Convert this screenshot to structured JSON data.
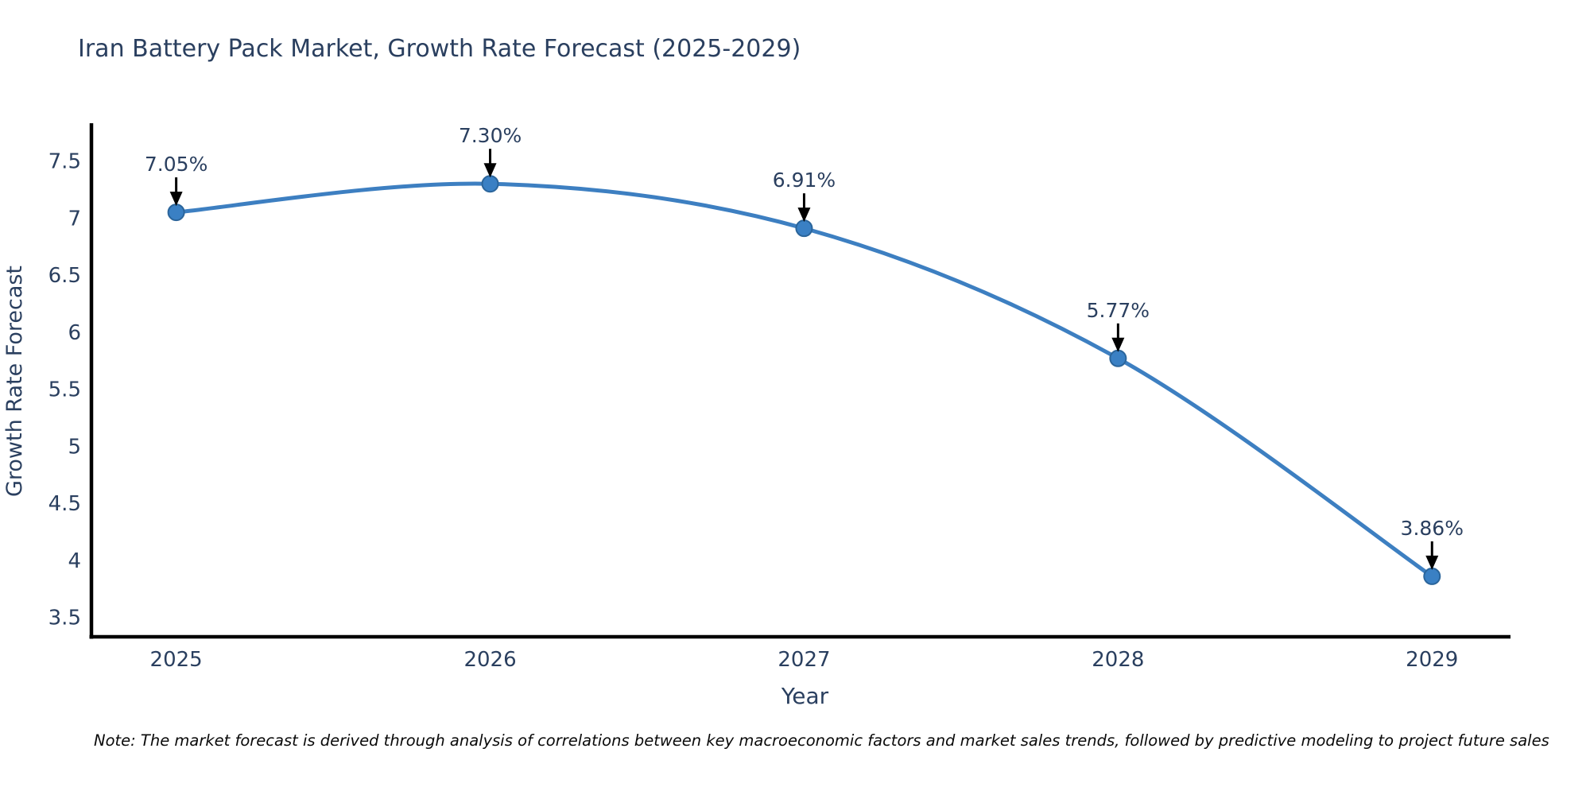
{
  "title": "Iran Battery Pack Market, Growth Rate Forecast (2025-2029)",
  "note": "Note: The market forecast is derived through analysis of correlations between key macroeconomic factors and market sales trends, followed by predictive modeling to project future sales",
  "chart_data": {
    "type": "line",
    "title": "Iran Battery Pack Market, Growth Rate Forecast (2025-2029)",
    "x": [
      2025,
      2026,
      2027,
      2028,
      2029
    ],
    "values": [
      7.05,
      7.3,
      6.91,
      5.77,
      3.86
    ],
    "point_labels": [
      "7.05%",
      "7.30%",
      "6.91%",
      "5.77%",
      "3.86%"
    ],
    "xlabel": "Year",
    "ylabel": "Growth Rate Forecast",
    "xticks": [
      "2025",
      "2026",
      "2027",
      "2028",
      "2029"
    ],
    "xtick_values": [
      2025,
      2026,
      2027,
      2028,
      2029
    ],
    "yticks": [
      "3.5",
      "4",
      "4.5",
      "5",
      "5.5",
      "6",
      "6.5",
      "7",
      "7.5"
    ],
    "ytick_values": [
      3.5,
      4,
      4.5,
      5,
      5.5,
      6,
      6.5,
      7,
      7.5
    ],
    "xlim": [
      2024.73,
      2029.25
    ],
    "ylim": [
      3.33,
      7.81
    ],
    "grid": false,
    "legend": "none",
    "smooth": true,
    "colors": {
      "line": "#3d7fc1",
      "marker_fill": "#3a80c4",
      "marker_edge": "#2b659b",
      "axis": "#000000",
      "tick_text": "#2a3f5f",
      "annotation_text": "#2a3f5f",
      "arrow": "#000000"
    }
  }
}
